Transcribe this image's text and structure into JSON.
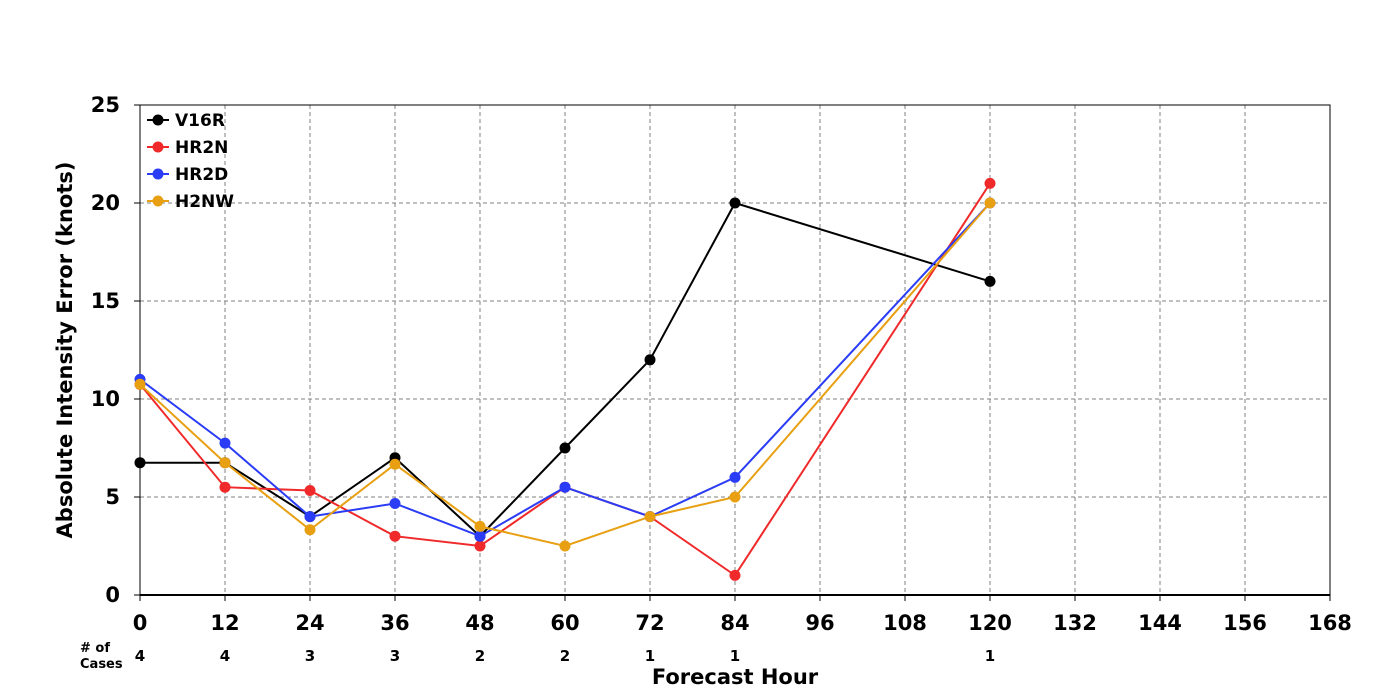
{
  "chart_data": {
    "type": "line",
    "xlabel": "Forecast Hour",
    "ylabel": "Absolute Intensity Error (knots)",
    "xlim": [
      0,
      168
    ],
    "ylim": [
      0,
      25
    ],
    "xticks": [
      0,
      12,
      24,
      36,
      48,
      60,
      72,
      84,
      96,
      108,
      120,
      132,
      144,
      156,
      168
    ],
    "yticks": [
      0,
      5,
      10,
      15,
      20,
      25
    ],
    "grid": true,
    "legend_position": "top-left",
    "series": [
      {
        "name": "V16R",
        "color": "#000000",
        "x": [
          0,
          12,
          24,
          36,
          48,
          60,
          72,
          84,
          120
        ],
        "y": [
          6.75,
          6.75,
          4,
          7,
          3,
          7.5,
          12,
          20,
          16
        ]
      },
      {
        "name": "HR2N",
        "color": "#f02a2a",
        "x": [
          0,
          12,
          24,
          36,
          48,
          60,
          72,
          84,
          120
        ],
        "y": [
          10.75,
          5.5,
          5.33,
          3,
          2.5,
          5.5,
          4,
          1,
          21
        ]
      },
      {
        "name": "HR2D",
        "color": "#2a3cf5",
        "x": [
          0,
          12,
          24,
          36,
          48,
          60,
          72,
          84,
          120
        ],
        "y": [
          11,
          7.75,
          4,
          4.67,
          3,
          5.5,
          4,
          6,
          20
        ]
      },
      {
        "name": "H2NW",
        "color": "#e8a012",
        "x": [
          0,
          12,
          24,
          36,
          48,
          60,
          72,
          84,
          120
        ],
        "y": [
          10.75,
          6.75,
          3.33,
          6.67,
          3.5,
          2.5,
          4,
          5,
          20
        ]
      }
    ],
    "cases": {
      "label_line1": "# of",
      "label_line2": "Cases",
      "x": [
        0,
        12,
        24,
        36,
        48,
        60,
        72,
        84,
        120
      ],
      "counts": [
        "4",
        "4",
        "3",
        "3",
        "2",
        "2",
        "1",
        "1",
        "1"
      ]
    }
  }
}
